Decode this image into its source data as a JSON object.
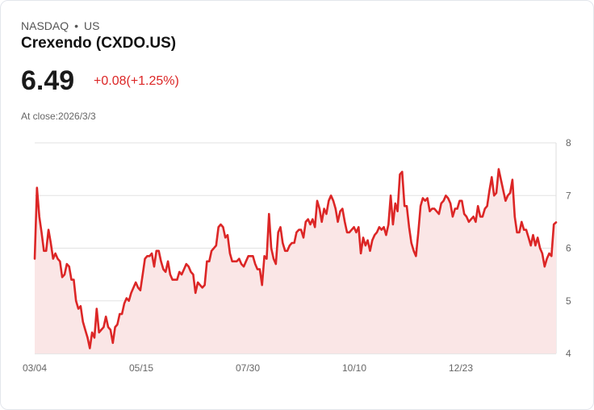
{
  "header": {
    "exchange": "NASDAQ",
    "separator": "•",
    "country": "US",
    "title": "Crexendo (CXDO.US)",
    "price": "6.49",
    "change": "+0.08(+1.25%)",
    "at_close": "At close:2026/3/3"
  },
  "colors": {
    "line": "#dc2626",
    "fill": "#fae6e6",
    "grid": "#e2e2e2"
  },
  "chart_data": {
    "type": "area",
    "title": "Crexendo (CXDO.US)",
    "xlabel": "",
    "ylabel": "",
    "ylim": [
      4,
      8
    ],
    "yticks": [
      "8",
      "7",
      "6",
      "5",
      "4"
    ],
    "xticks": [
      "03/04",
      "05/15",
      "07/30",
      "10/10",
      "12/23"
    ],
    "grid": true,
    "values": [
      5.8,
      7.15,
      6.6,
      6.3,
      5.95,
      5.95,
      6.35,
      6.1,
      5.8,
      5.9,
      5.8,
      5.75,
      5.45,
      5.5,
      5.7,
      5.65,
      5.4,
      5.4,
      5.0,
      4.85,
      4.9,
      4.6,
      4.45,
      4.3,
      4.1,
      4.4,
      4.3,
      4.85,
      4.4,
      4.45,
      4.5,
      4.7,
      4.5,
      4.45,
      4.2,
      4.5,
      4.55,
      4.75,
      4.75,
      4.95,
      5.05,
      5.0,
      5.15,
      5.25,
      5.35,
      5.25,
      5.2,
      5.5,
      5.8,
      5.85,
      5.85,
      5.9,
      5.65,
      5.95,
      5.95,
      5.75,
      5.6,
      5.55,
      5.75,
      5.5,
      5.4,
      5.4,
      5.4,
      5.55,
      5.5,
      5.6,
      5.7,
      5.65,
      5.55,
      5.5,
      5.15,
      5.35,
      5.3,
      5.25,
      5.3,
      5.75,
      5.75,
      5.95,
      6.0,
      6.05,
      6.4,
      6.45,
      6.4,
      6.2,
      6.25,
      5.9,
      5.75,
      5.75,
      5.75,
      5.8,
      5.7,
      5.65,
      5.75,
      5.85,
      5.85,
      5.85,
      5.7,
      5.6,
      5.6,
      5.3,
      5.85,
      5.8,
      6.65,
      6.0,
      5.8,
      5.7,
      6.3,
      6.4,
      6.1,
      5.95,
      5.95,
      6.05,
      6.1,
      6.1,
      6.3,
      6.35,
      6.35,
      6.2,
      6.5,
      6.55,
      6.45,
      6.55,
      6.4,
      6.9,
      6.75,
      6.5,
      6.75,
      6.65,
      6.9,
      7.0,
      6.9,
      6.75,
      6.5,
      6.7,
      6.75,
      6.5,
      6.3,
      6.3,
      6.35,
      6.4,
      6.3,
      6.4,
      5.9,
      6.2,
      6.05,
      6.15,
      5.95,
      6.15,
      6.25,
      6.3,
      6.4,
      6.35,
      6.4,
      6.25,
      6.45,
      7.0,
      6.45,
      6.85,
      6.7,
      7.4,
      7.45,
      6.8,
      6.8,
      6.4,
      6.1,
      5.95,
      5.85,
      6.3,
      6.8,
      6.95,
      6.9,
      6.95,
      6.7,
      6.75,
      6.75,
      6.7,
      6.65,
      6.85,
      6.9,
      7.0,
      6.95,
      6.85,
      6.6,
      6.75,
      6.75,
      6.9,
      6.9,
      6.65,
      6.6,
      6.5,
      6.55,
      6.6,
      6.5,
      6.8,
      6.6,
      6.6,
      6.75,
      6.8,
      7.1,
      7.35,
      7.0,
      7.05,
      7.5,
      7.3,
      7.1,
      6.9,
      7.0,
      7.05,
      7.3,
      6.6,
      6.3,
      6.3,
      6.5,
      6.35,
      6.35,
      6.2,
      6.05,
      6.25,
      6.05,
      6.2,
      6.0,
      5.9,
      5.65,
      5.8,
      5.9,
      5.85,
      6.45,
      6.49
    ]
  }
}
